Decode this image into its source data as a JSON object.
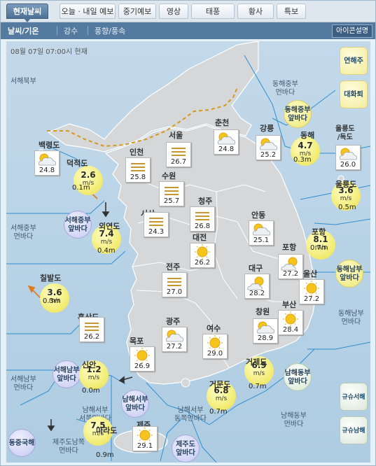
{
  "tabs": [
    "현재날씨",
    "오늘 · 내일 예보",
    "중기예보",
    "영상",
    "태풍",
    "황사",
    "특보"
  ],
  "subnav": {
    "items": [
      "날씨/기온",
      "강수",
      "풍향/풍속"
    ],
    "legend_button": "아이콘설명"
  },
  "timestamp": "08월 07일 07:00시 현재",
  "corner_buttons": [
    "연해주",
    "대화퇴",
    "규슈서해",
    "규슈남해"
  ],
  "sea_labels": [
    "서해북부",
    "동해중부\n먼바다",
    "서해중부\n먼바다",
    "동해남부\n먼바다",
    "서해남부\n먼바다",
    "남해서부\n서쪽먼바다",
    "남해서부\n동쪽먼바다",
    "남해동부\n먼바다",
    "제주도남쪽\n먼바다",
    "울릉도\n/독도"
  ],
  "area_badges": [
    {
      "name": "동해중부\n앞바다",
      "color": "yellow"
    },
    {
      "name": "서해중부\n앞바다",
      "color": "blue"
    },
    {
      "name": "동해남부\n앞바다",
      "color": "yellow"
    },
    {
      "name": "서해남부\n앞바다",
      "color": "blue"
    },
    {
      "name": "남해서부\n앞바다",
      "color": "blue"
    },
    {
      "name": "남해동부\n앞바다",
      "color": "green"
    },
    {
      "name": "제주도\n앞바다",
      "color": "blue"
    },
    {
      "name": "동중국해",
      "color": "blue"
    }
  ],
  "land_stations": [
    {
      "name": "백령도",
      "weather": "partly-cloudy",
      "temp": "24.8"
    },
    {
      "name": "인천",
      "weather": "haze",
      "temp": "25.8"
    },
    {
      "name": "서울",
      "weather": "haze",
      "temp": "26.7"
    },
    {
      "name": "춘천",
      "weather": "partly-cloudy",
      "temp": "24.8"
    },
    {
      "name": "강릉",
      "weather": "partly-cloudy",
      "temp": "25.2"
    },
    {
      "name": "수원",
      "weather": "haze",
      "temp": "25.7"
    },
    {
      "name": "청주",
      "weather": "haze",
      "temp": "26.8"
    },
    {
      "name": "서산",
      "weather": "haze",
      "temp": "24.3"
    },
    {
      "name": "안동",
      "weather": "partly-cloudy",
      "temp": "25.1"
    },
    {
      "name": "대전",
      "weather": "sunny",
      "temp": "26.2"
    },
    {
      "name": "포항",
      "weather": "mostly-sunny",
      "temp": "27.2"
    },
    {
      "name": "전주",
      "weather": "haze",
      "temp": "27.0"
    },
    {
      "name": "대구",
      "weather": "mostly-sunny",
      "temp": "28.2"
    },
    {
      "name": "울산",
      "weather": "sunny",
      "temp": "27.2"
    },
    {
      "name": "흑산도",
      "weather": "haze",
      "temp": "26.2"
    },
    {
      "name": "광주",
      "weather": "partly-cloudy",
      "temp": "27.2"
    },
    {
      "name": "창원",
      "weather": "partly-cloudy",
      "temp": "28.9"
    },
    {
      "name": "부산",
      "weather": "sunny",
      "temp": "28.4"
    },
    {
      "name": "목포",
      "weather": "sunny",
      "temp": "26.9"
    },
    {
      "name": "여수",
      "weather": "sunny",
      "temp": "29.0"
    },
    {
      "name": "제주",
      "weather": "sunny",
      "temp": "29.1"
    }
  ],
  "buoys": [
    {
      "name": "덕적도",
      "wind": "2.6",
      "unit": "m/s",
      "wave": "0.1m"
    },
    {
      "name": "외연도",
      "wind": "7.4",
      "unit": "m/s",
      "wave": "0.4m"
    },
    {
      "name": "칠발도",
      "wind": "3.6",
      "unit": "m/s",
      "wave": "0.3m"
    },
    {
      "name": "동해",
      "wind": "4.7",
      "unit": "m/s",
      "wave": "0.3m"
    },
    {
      "name": "울릉도",
      "wind": "3.6",
      "unit": "m/s",
      "wave": "0.5m"
    },
    {
      "name": "포항",
      "wind": "8.1",
      "unit": "m/s",
      "wave": "0.7m"
    },
    {
      "name": "신안",
      "wind": "1.2",
      "unit": "m/s",
      "wave": "0.0m"
    },
    {
      "name": "거제도",
      "wind": "6.9",
      "unit": "m/s",
      "wave": "0.7m"
    },
    {
      "name": "거문도",
      "wind": "6.8",
      "unit": "m/s",
      "wave": "0.7m"
    },
    {
      "name": "마라도",
      "wind": "7.5",
      "unit": "m/s",
      "wave": "0.9m"
    }
  ],
  "extra_stations": [
    {
      "name": "울릉도/독도",
      "weather": "partly-cloudy",
      "temp": "26.0"
    }
  ]
}
